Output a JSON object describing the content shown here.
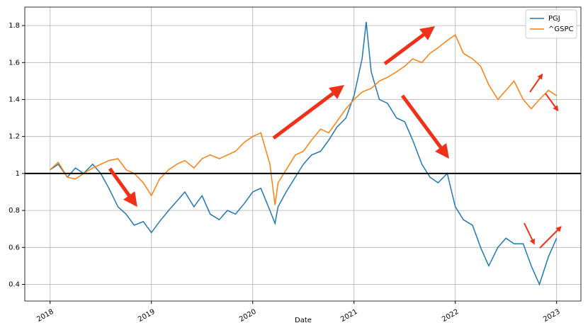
{
  "chart_data": {
    "type": "line",
    "x_label": "Date",
    "x": [
      2018,
      2018.08,
      2018.17,
      2018.25,
      2018.33,
      2018.42,
      2018.5,
      2018.58,
      2018.67,
      2018.75,
      2018.83,
      2018.92,
      2019,
      2019.08,
      2019.17,
      2019.25,
      2019.33,
      2019.42,
      2019.5,
      2019.58,
      2019.67,
      2019.75,
      2019.83,
      2019.92,
      2020,
      2020.08,
      2020.17,
      2020.22,
      2020.25,
      2020.33,
      2020.42,
      2020.5,
      2020.58,
      2020.67,
      2020.75,
      2020.83,
      2020.92,
      2021,
      2021.08,
      2021.12,
      2021.17,
      2021.25,
      2021.33,
      2021.42,
      2021.5,
      2021.58,
      2021.67,
      2021.75,
      2021.83,
      2021.92,
      2022,
      2022.08,
      2022.17,
      2022.25,
      2022.33,
      2022.42,
      2022.5,
      2022.58,
      2022.67,
      2022.75,
      2022.83,
      2022.92,
      2023
    ],
    "series": [
      {
        "name": "PGJ",
        "color": "#1f77b4",
        "values": [
          1.02,
          1.05,
          0.98,
          1.03,
          1.0,
          1.05,
          1.0,
          0.92,
          0.82,
          0.78,
          0.72,
          0.74,
          0.68,
          0.74,
          0.8,
          0.85,
          0.9,
          0.82,
          0.88,
          0.78,
          0.75,
          0.8,
          0.78,
          0.84,
          0.9,
          0.92,
          0.8,
          0.73,
          0.82,
          0.9,
          0.98,
          1.05,
          1.1,
          1.12,
          1.18,
          1.25,
          1.3,
          1.42,
          1.62,
          1.82,
          1.55,
          1.4,
          1.38,
          1.3,
          1.28,
          1.18,
          1.05,
          0.98,
          0.95,
          1.0,
          0.82,
          0.75,
          0.72,
          0.6,
          0.5,
          0.6,
          0.65,
          0.62,
          0.62,
          0.5,
          0.4,
          0.55,
          0.65
        ]
      },
      {
        "name": "^GSPC",
        "color": "#ff7f0e",
        "values": [
          1.02,
          1.06,
          0.98,
          0.97,
          1.0,
          1.03,
          1.05,
          1.07,
          1.08,
          1.02,
          1.0,
          0.95,
          0.88,
          0.97,
          1.02,
          1.05,
          1.07,
          1.03,
          1.08,
          1.1,
          1.08,
          1.1,
          1.12,
          1.17,
          1.2,
          1.22,
          1.05,
          0.83,
          0.95,
          1.02,
          1.1,
          1.12,
          1.18,
          1.24,
          1.22,
          1.28,
          1.35,
          1.4,
          1.44,
          1.45,
          1.46,
          1.5,
          1.52,
          1.55,
          1.58,
          1.62,
          1.6,
          1.65,
          1.68,
          1.72,
          1.75,
          1.65,
          1.62,
          1.58,
          1.48,
          1.4,
          1.45,
          1.5,
          1.4,
          1.35,
          1.4,
          1.45,
          1.42
        ]
      }
    ],
    "reference_line": 1,
    "xlim": [
      2017.75,
      2023.24
    ],
    "xticks": [
      2018,
      2019,
      2020,
      2021,
      2022,
      2023
    ],
    "ylim": [
      0.31,
      1.9
    ],
    "yticks": [
      0.4,
      0.6,
      0.8,
      1.0,
      1.2,
      1.4,
      1.6,
      1.8
    ],
    "grid": true,
    "legend": "upper right"
  }
}
